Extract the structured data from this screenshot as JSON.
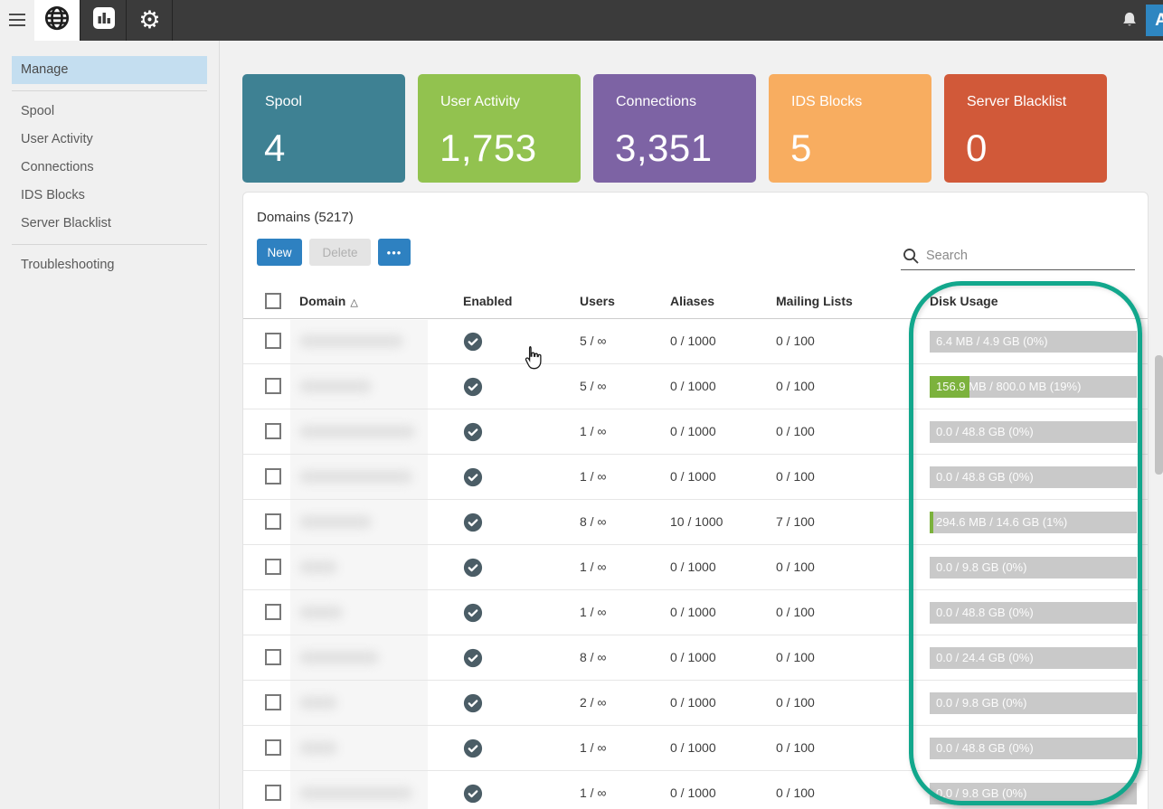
{
  "topbar": {
    "tabs": [
      {
        "id": "domains",
        "icon": "globe-icon",
        "active": true
      },
      {
        "id": "reports",
        "icon": "bar-chart-icon",
        "active": false
      },
      {
        "id": "settings",
        "icon": "gear-icon",
        "active": false
      }
    ],
    "avatar_letter": "A"
  },
  "sidebar": {
    "sections": [
      {
        "items": [
          {
            "label": "Manage",
            "active": true
          }
        ]
      },
      {
        "items": [
          {
            "label": "Spool"
          },
          {
            "label": "User Activity"
          },
          {
            "label": "Connections"
          },
          {
            "label": "IDS Blocks"
          },
          {
            "label": "Server Blacklist"
          }
        ]
      },
      {
        "items": [
          {
            "label": "Troubleshooting"
          }
        ]
      }
    ]
  },
  "cards": [
    {
      "label": "Spool",
      "value": "4",
      "color": "#3e8193"
    },
    {
      "label": "User Activity",
      "value": "1,753",
      "color": "#92c24f"
    },
    {
      "label": "Connections",
      "value": "3,351",
      "color": "#7d63a4"
    },
    {
      "label": "IDS Blocks",
      "value": "5",
      "color": "#f8ad60"
    },
    {
      "label": "Server Blacklist",
      "value": "0",
      "color": "#d15939"
    }
  ],
  "panel": {
    "title": "Domains (5217)",
    "buttons": {
      "new": "New",
      "delete": "Delete",
      "more": "•••"
    },
    "search_placeholder": "Search",
    "table": {
      "columns": [
        "Domain",
        "Enabled",
        "Users",
        "Aliases",
        "Mailing Lists",
        "Disk Usage"
      ],
      "sort_column": "Domain",
      "sort_direction": "asc",
      "sort_indicator": "△",
      "rows": [
        {
          "domain": "(redacted)",
          "enabled": true,
          "users": "5 / ∞",
          "aliases": "0 / 1000",
          "mailing_lists": "0 / 100",
          "disk_usage": "6.4 MB / 4.9 GB (0%)",
          "disk_percent": 0,
          "blur_width": 115
        },
        {
          "domain": "(redacted)",
          "enabled": true,
          "users": "5 / ∞",
          "aliases": "0 / 1000",
          "mailing_lists": "0 / 100",
          "disk_usage": "156.9 MB / 800.0 MB (19%)",
          "disk_percent": 19,
          "blur_width": 80
        },
        {
          "domain": "(redacted)",
          "enabled": true,
          "users": "1 / ∞",
          "aliases": "0 / 1000",
          "mailing_lists": "0 / 100",
          "disk_usage": "0.0 / 48.8 GB (0%)",
          "disk_percent": 0,
          "blur_width": 128
        },
        {
          "domain": "(redacted)",
          "enabled": true,
          "users": "1 / ∞",
          "aliases": "0 / 1000",
          "mailing_lists": "0 / 100",
          "disk_usage": "0.0 / 48.8 GB (0%)",
          "disk_percent": 0,
          "blur_width": 125
        },
        {
          "domain": "(redacted)",
          "enabled": true,
          "users": "8 / ∞",
          "aliases": "10 / 1000",
          "mailing_lists": "7 / 100",
          "disk_usage": "294.6 MB / 14.6 GB (1%)",
          "disk_percent": 1,
          "blur_width": 80
        },
        {
          "domain": "(redacted)",
          "enabled": true,
          "users": "1 / ∞",
          "aliases": "0 / 1000",
          "mailing_lists": "0 / 100",
          "disk_usage": "0.0 / 9.8 GB (0%)",
          "disk_percent": 0,
          "blur_width": 42
        },
        {
          "domain": "(redacted)",
          "enabled": true,
          "users": "1 / ∞",
          "aliases": "0 / 1000",
          "mailing_lists": "0 / 100",
          "disk_usage": "0.0 / 48.8 GB (0%)",
          "disk_percent": 0,
          "blur_width": 48
        },
        {
          "domain": "(redacted)",
          "enabled": true,
          "users": "8 / ∞",
          "aliases": "0 / 1000",
          "mailing_lists": "0 / 100",
          "disk_usage": "0.0 / 24.4 GB (0%)",
          "disk_percent": 0,
          "blur_width": 88
        },
        {
          "domain": "(redacted)",
          "enabled": true,
          "users": "2 / ∞",
          "aliases": "0 / 1000",
          "mailing_lists": "0 / 100",
          "disk_usage": "0.0 / 9.8 GB (0%)",
          "disk_percent": 0,
          "blur_width": 42
        },
        {
          "domain": "(redacted)",
          "enabled": true,
          "users": "1 / ∞",
          "aliases": "0 / 1000",
          "mailing_lists": "0 / 100",
          "disk_usage": "0.0 / 48.8 GB (0%)",
          "disk_percent": 0,
          "blur_width": 42
        },
        {
          "domain": "(redacted)",
          "enabled": true,
          "users": "1 / ∞",
          "aliases": "0 / 1000",
          "mailing_lists": "0 / 100",
          "disk_usage": "0.0 / 9.8 GB (0%)",
          "disk_percent": 0,
          "blur_width": 125
        }
      ]
    }
  },
  "annotation": {
    "shape": "rounded-rect-marker",
    "color": "#12a78c",
    "target": "Disk Usage column"
  },
  "colors": {
    "topbar": "#3b3b3b",
    "accent_blue": "#2e81c1",
    "sidebar_active": "#c4def0",
    "bar_track": "#c9c9c9",
    "bar_fill": "#7cb23d",
    "enabled_icon": "#4b5d66"
  }
}
